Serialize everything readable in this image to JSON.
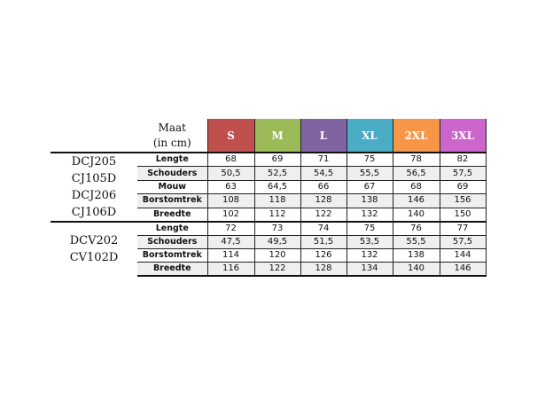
{
  "header": {
    "maat_line1": "Maat",
    "maat_line2": "(in cm)"
  },
  "sizes": [
    {
      "label": "S",
      "color": "#c0504d"
    },
    {
      "label": "M",
      "color": "#9bbb59"
    },
    {
      "label": "L",
      "color": "#8064a2"
    },
    {
      "label": "XL",
      "color": "#4bacc6"
    },
    {
      "label": "2XL",
      "color": "#f79646"
    },
    {
      "label": "3XL",
      "color": "#cc66cc"
    }
  ],
  "groups": [
    {
      "models": [
        "DCJ205",
        "CJ105D",
        "DCJ206",
        "CJ106D"
      ],
      "rows": [
        {
          "label": "Lengte",
          "values": [
            "68",
            "69",
            "71",
            "75",
            "78",
            "82"
          ]
        },
        {
          "label": "Schouders",
          "values": [
            "50,5",
            "52,5",
            "54,5",
            "55,5",
            "56,5",
            "57,5"
          ]
        },
        {
          "label": "Mouw",
          "values": [
            "63",
            "64,5",
            "66",
            "67",
            "68",
            "69"
          ]
        },
        {
          "label": "Borstomtrek",
          "values": [
            "108",
            "118",
            "128",
            "138",
            "146",
            "156"
          ]
        },
        {
          "label": "Breedte",
          "values": [
            "102",
            "112",
            "122",
            "132",
            "140",
            "150"
          ]
        }
      ]
    },
    {
      "models": [
        "DCV202",
        "CV102D"
      ],
      "rows": [
        {
          "label": "Lengte",
          "values": [
            "72",
            "73",
            "74",
            "75",
            "76",
            "77"
          ]
        },
        {
          "label": "Schouders",
          "values": [
            "47,5",
            "49,5",
            "51,5",
            "53,5",
            "55,5",
            "57,5"
          ]
        },
        {
          "label": "Borstomtrek",
          "values": [
            "114",
            "120",
            "126",
            "132",
            "138",
            "144"
          ]
        },
        {
          "label": "Breedte",
          "values": [
            "116",
            "122",
            "128",
            "134",
            "140",
            "146"
          ]
        }
      ]
    }
  ]
}
